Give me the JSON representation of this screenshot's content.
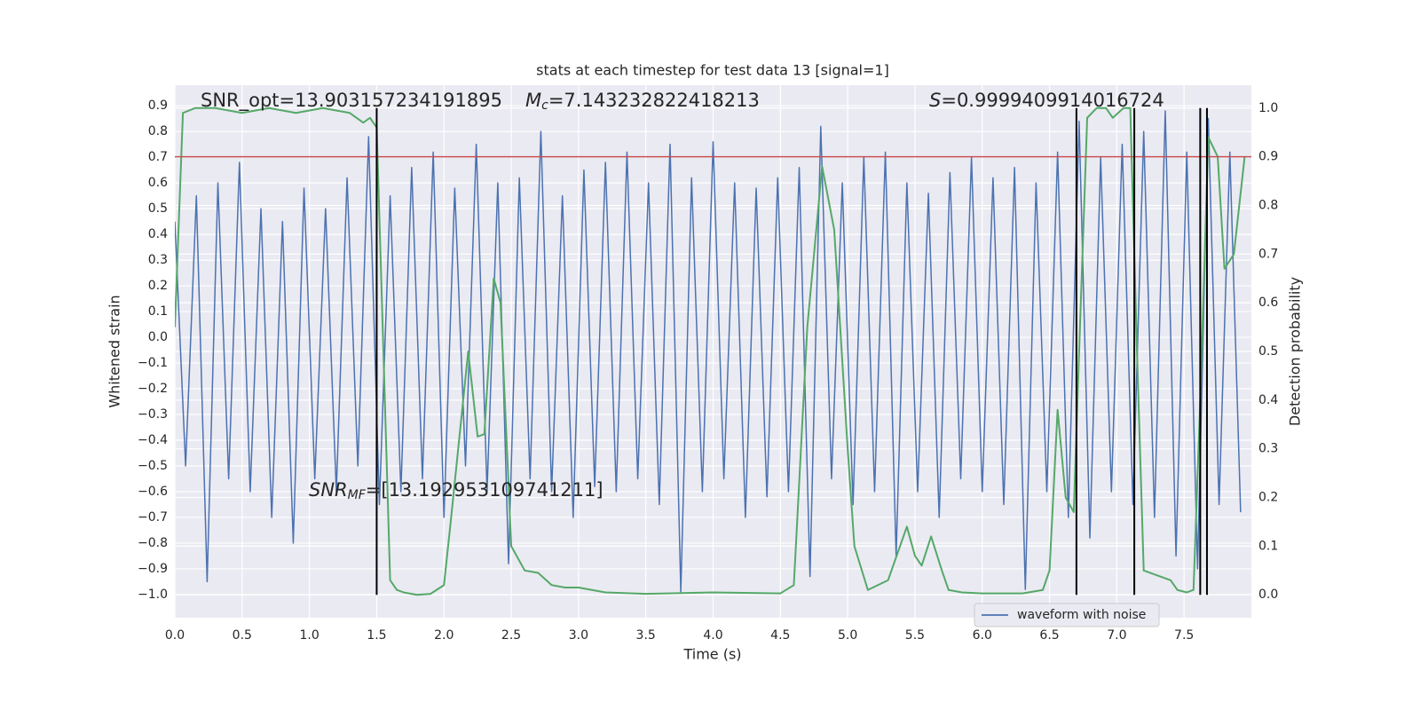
{
  "chart_data": {
    "type": "line",
    "title": "stats at each timestep for test data 13 [signal=1]",
    "xlabel": "Time (s)",
    "ylabel": "Whitened strain",
    "y2label": "Detection probability",
    "grid": true,
    "legend": "lower right",
    "xlim": [
      0,
      8
    ],
    "ylim": [
      -1.09,
      0.98
    ],
    "y2lim": [
      -0.047,
      1.047
    ],
    "xticks": [
      {
        "value": 0,
        "label": "0.0"
      },
      {
        "value": 0.5,
        "label": "0.5"
      },
      {
        "value": 1,
        "label": "1.0"
      },
      {
        "value": 1.5,
        "label": "1.5"
      },
      {
        "value": 2,
        "label": "2.0"
      },
      {
        "value": 2.5,
        "label": "2.5"
      },
      {
        "value": 3,
        "label": "3.0"
      },
      {
        "value": 3.5,
        "label": "3.5"
      },
      {
        "value": 4,
        "label": "4.0"
      },
      {
        "value": 4.5,
        "label": "4.5"
      },
      {
        "value": 5,
        "label": "5.0"
      },
      {
        "value": 5.5,
        "label": "5.5"
      },
      {
        "value": 6,
        "label": "6.0"
      },
      {
        "value": 6.5,
        "label": "6.5"
      },
      {
        "value": 7,
        "label": "7.0"
      },
      {
        "value": 7.5,
        "label": "7.5"
      }
    ],
    "yticks": [
      {
        "value": -1,
        "label": "−1.0"
      },
      {
        "value": -0.9,
        "label": "−0.9"
      },
      {
        "value": -0.8,
        "label": "−0.8"
      },
      {
        "value": -0.7,
        "label": "−0.7"
      },
      {
        "value": -0.6,
        "label": "−0.6"
      },
      {
        "value": -0.5,
        "label": "−0.5"
      },
      {
        "value": -0.4,
        "label": "−0.4"
      },
      {
        "value": -0.3,
        "label": "−0.3"
      },
      {
        "value": -0.2,
        "label": "−0.2"
      },
      {
        "value": -0.1,
        "label": "−0.1"
      },
      {
        "value": 0,
        "label": "0.0"
      },
      {
        "value": 0.1,
        "label": "0.1"
      },
      {
        "value": 0.2,
        "label": "0.2"
      },
      {
        "value": 0.3,
        "label": "0.3"
      },
      {
        "value": 0.4,
        "label": "0.4"
      },
      {
        "value": 0.5,
        "label": "0.5"
      },
      {
        "value": 0.6,
        "label": "0.6"
      },
      {
        "value": 0.7,
        "label": "0.7"
      },
      {
        "value": 0.8,
        "label": "0.8"
      },
      {
        "value": 0.9,
        "label": "0.9"
      }
    ],
    "y2ticks": [
      {
        "value": 0,
        "label": "0.0"
      },
      {
        "value": 0.1,
        "label": "0.1"
      },
      {
        "value": 0.2,
        "label": "0.2"
      },
      {
        "value": 0.3,
        "label": "0.3"
      },
      {
        "value": 0.4,
        "label": "0.4"
      },
      {
        "value": 0.5,
        "label": "0.5"
      },
      {
        "value": 0.6,
        "label": "0.6"
      },
      {
        "value": 0.7,
        "label": "0.7"
      },
      {
        "value": 0.8,
        "label": "0.8"
      },
      {
        "value": 0.9,
        "label": "0.9"
      },
      {
        "value": 1,
        "label": "1.0"
      }
    ],
    "series": [
      {
        "name": "waveform with noise",
        "color": "#4c72b0",
        "x": [
          0,
          0.08,
          0.16,
          0.24,
          0.32,
          0.4,
          0.48,
          0.56,
          0.64,
          0.72,
          0.8,
          0.88,
          0.96,
          1.04,
          1.12,
          1.2,
          1.28,
          1.36,
          1.44,
          1.52,
          1.6,
          1.68,
          1.76,
          1.84,
          1.92,
          2,
          2.08,
          2.16,
          2.24,
          2.32,
          2.4,
          2.48,
          2.56,
          2.64,
          2.72,
          2.8,
          2.88,
          2.96,
          3.04,
          3.12,
          3.2,
          3.28,
          3.36,
          3.44,
          3.52,
          3.6,
          3.68,
          3.76,
          3.84,
          3.92,
          4,
          4.08,
          4.16,
          4.24,
          4.32,
          4.4,
          4.48,
          4.56,
          4.64,
          4.72,
          4.8,
          4.88,
          4.96,
          5.04,
          5.12,
          5.2,
          5.28,
          5.36,
          5.44,
          5.52,
          5.6,
          5.68,
          5.76,
          5.84,
          5.92,
          6,
          6.08,
          6.16,
          6.24,
          6.32,
          6.4,
          6.48,
          6.56,
          6.64,
          6.72,
          6.8,
          6.88,
          6.96,
          7.04,
          7.12,
          7.2,
          7.28,
          7.36,
          7.44,
          7.52,
          7.6,
          7.68,
          7.76,
          7.84,
          7.92
        ],
        "values": [
          0.45,
          -0.5,
          0.55,
          -0.95,
          0.6,
          -0.55,
          0.68,
          -0.6,
          0.5,
          -0.7,
          0.45,
          -0.8,
          0.58,
          -0.55,
          0.5,
          -0.6,
          0.62,
          -0.5,
          0.78,
          -0.65,
          0.55,
          -0.6,
          0.66,
          -0.55,
          0.72,
          -0.7,
          0.58,
          -0.5,
          0.75,
          -0.6,
          0.6,
          -0.88,
          0.62,
          -0.55,
          0.8,
          -0.6,
          0.55,
          -0.7,
          0.65,
          -0.58,
          0.68,
          -0.6,
          0.72,
          -0.55,
          0.6,
          -0.65,
          0.75,
          -0.99,
          0.62,
          -0.6,
          0.76,
          -0.55,
          0.6,
          -0.7,
          0.58,
          -0.62,
          0.62,
          -0.6,
          0.66,
          -0.93,
          0.82,
          -0.55,
          0.6,
          -0.65,
          0.7,
          -0.6,
          0.72,
          -0.85,
          0.6,
          -0.6,
          0.56,
          -0.7,
          0.64,
          -0.55,
          0.7,
          -0.6,
          0.62,
          -0.65,
          0.66,
          -0.98,
          0.6,
          -0.6,
          0.72,
          -0.7,
          0.84,
          -0.78,
          0.7,
          -0.6,
          0.75,
          -0.65,
          0.8,
          -0.7,
          0.88,
          -0.85,
          0.72,
          -0.9,
          0.85,
          -0.65,
          0.72,
          -0.68
        ]
      }
    ],
    "probability_line": {
      "color": "#55a868",
      "axis": "y2",
      "x": [
        0,
        0.06,
        0.15,
        0.3,
        0.5,
        0.7,
        0.9,
        1.1,
        1.3,
        1.4,
        1.45,
        1.5,
        1.55,
        1.6,
        1.65,
        1.7,
        1.8,
        1.9,
        2.0,
        2.05,
        2.18,
        2.25,
        2.3,
        2.37,
        2.42,
        2.5,
        2.6,
        2.7,
        2.8,
        2.9,
        3.0,
        3.2,
        3.5,
        4.0,
        4.5,
        4.6,
        4.7,
        4.81,
        4.9,
        5.0,
        5.05,
        5.15,
        5.3,
        5.44,
        5.5,
        5.55,
        5.62,
        5.7,
        5.75,
        5.85,
        6.0,
        6.3,
        6.45,
        6.5,
        6.56,
        6.62,
        6.68,
        6.72,
        6.78,
        6.85,
        6.92,
        6.97,
        7.05,
        7.1,
        7.15,
        7.2,
        7.3,
        7.4,
        7.45,
        7.52,
        7.57,
        7.62,
        7.68,
        7.75,
        7.8,
        7.87,
        7.95
      ],
      "values": [
        0.55,
        0.99,
        1.0,
        1.0,
        0.99,
        1.0,
        0.99,
        1.0,
        0.99,
        0.97,
        0.98,
        0.96,
        0.5,
        0.03,
        0.01,
        0.005,
        0.0,
        0.002,
        0.02,
        0.15,
        0.5,
        0.325,
        0.33,
        0.65,
        0.6,
        0.1,
        0.05,
        0.045,
        0.02,
        0.015,
        0.015,
        0.005,
        0.002,
        0.005,
        0.003,
        0.02,
        0.55,
        0.88,
        0.75,
        0.3,
        0.1,
        0.01,
        0.03,
        0.14,
        0.08,
        0.06,
        0.12,
        0.05,
        0.01,
        0.005,
        0.003,
        0.003,
        0.01,
        0.05,
        0.38,
        0.2,
        0.17,
        0.5,
        0.98,
        1.0,
        1.0,
        0.98,
        1.0,
        1.0,
        0.5,
        0.05,
        0.04,
        0.03,
        0.01,
        0.005,
        0.01,
        0.4,
        0.94,
        0.9,
        0.67,
        0.7,
        0.9
      ]
    },
    "threshold": {
      "value": 0.9,
      "axis": "y2",
      "color": "#c44e52"
    },
    "vlines": {
      "x": [
        1.5,
        6.7,
        7.13,
        7.62,
        7.67
      ],
      "ymin": 0,
      "ymax": 1,
      "axis": "y2",
      "color": "#000000"
    },
    "annotations": [
      {
        "text": "SNR_opt=13.903157234191895"
      },
      {
        "symbol": "M",
        "subscript": "c",
        "text": "=7.143232822418213"
      },
      {
        "symbol": "S",
        "text": "=0.9999409914016724"
      },
      {
        "symbol": "SNR",
        "subscript": "MF",
        "text": "=[13.192953109741211]"
      }
    ]
  }
}
